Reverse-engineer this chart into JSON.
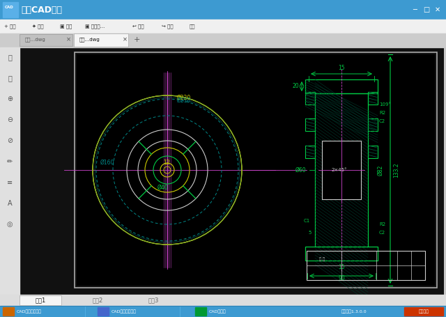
{
  "title_bar_color": "#3d9ad1",
  "title_text": "迅捷CAD看图",
  "tab1": "直齿...dwg",
  "tab2": "带轮...dwg",
  "page1": "页面1",
  "page2": "页面2",
  "page3": "页面3",
  "bottom_items": [
    "CAD编辑器标准版",
    "CAD编辑器专业版",
    "CAD转换器"
  ],
  "version": "版本号：1.3.0.0",
  "online": "在线客服",
  "cad_yellow": "#cccc00",
  "cad_cyan": "#008888",
  "cad_green": "#00cc44",
  "cad_magenta": "#cc44cc",
  "cad_white": "#cccccc",
  "cad_dim_green": "#00ff88",
  "hatch_color": "#006644"
}
